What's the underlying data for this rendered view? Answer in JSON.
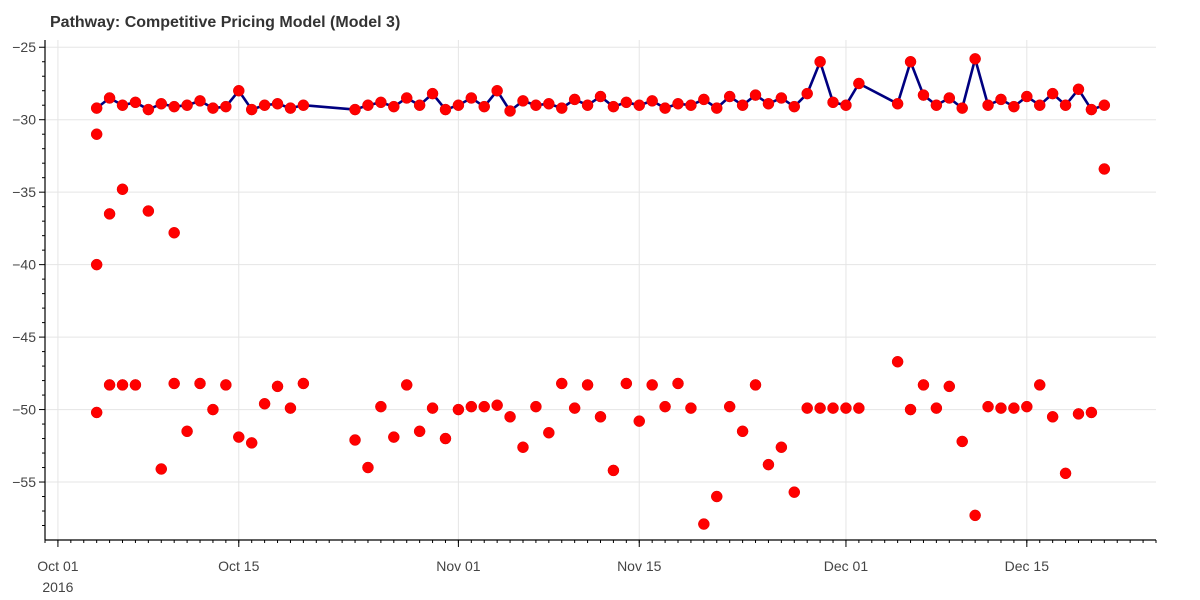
{
  "chart_data": {
    "type": "line",
    "title": "Pathway: Competitive Pricing Model (Model 3)",
    "xlabel": "",
    "ylabel": "",
    "x_axis": {
      "type": "datetime",
      "range": [
        "2016-09-30",
        "2016-12-25"
      ],
      "ticks": [
        {
          "date": "2016-10-01",
          "label": "Oct 01",
          "sublabel": "2016"
        },
        {
          "date": "2016-10-15",
          "label": "Oct 15"
        },
        {
          "date": "2016-11-01",
          "label": "Nov 01"
        },
        {
          "date": "2016-11-15",
          "label": "Nov 15"
        },
        {
          "date": "2016-12-01",
          "label": "Dec 01"
        },
        {
          "date": "2016-12-15",
          "label": "Dec 15"
        }
      ]
    },
    "y_axis": {
      "range": [
        -59,
        -24.5
      ],
      "ticks": [
        -25,
        -30,
        -35,
        -40,
        -45,
        -50,
        -55
      ],
      "tick_labels": [
        "−25",
        "−30",
        "−35",
        "−40",
        "−45",
        "−50",
        "−55"
      ]
    },
    "grid": true,
    "colors": {
      "line": "#000080",
      "marker": "#ff0000",
      "grid": "#e5e5e5",
      "title": "#333333"
    },
    "series": [
      {
        "style": "line+markers",
        "x": [
          "2016-10-04",
          "2016-10-05",
          "2016-10-06",
          "2016-10-07",
          "2016-10-08",
          "2016-10-09",
          "2016-10-10",
          "2016-10-11",
          "2016-10-12",
          "2016-10-13",
          "2016-10-14",
          "2016-10-15",
          "2016-10-16",
          "2016-10-17",
          "2016-10-18",
          "2016-10-19",
          "2016-10-20",
          "2016-10-24",
          "2016-10-25",
          "2016-10-26",
          "2016-10-27",
          "2016-10-28",
          "2016-10-29",
          "2016-10-30",
          "2016-10-31",
          "2016-11-01",
          "2016-11-02",
          "2016-11-03",
          "2016-11-04",
          "2016-11-05",
          "2016-11-06",
          "2016-11-07",
          "2016-11-08",
          "2016-11-09",
          "2016-11-10",
          "2016-11-11",
          "2016-11-12",
          "2016-11-13",
          "2016-11-14",
          "2016-11-15",
          "2016-11-16",
          "2016-11-17",
          "2016-11-18",
          "2016-11-19",
          "2016-11-20",
          "2016-11-21",
          "2016-11-22",
          "2016-11-23",
          "2016-11-24",
          "2016-11-25",
          "2016-11-26",
          "2016-11-27",
          "2016-11-28",
          "2016-11-29",
          "2016-11-30",
          "2016-12-01",
          "2016-12-02",
          "2016-12-05",
          "2016-12-06",
          "2016-12-07",
          "2016-12-08",
          "2016-12-09",
          "2016-12-10",
          "2016-12-11",
          "2016-12-12",
          "2016-12-13",
          "2016-12-14",
          "2016-12-15",
          "2016-12-16",
          "2016-12-17",
          "2016-12-18",
          "2016-12-19",
          "2016-12-20",
          "2016-12-21"
        ],
        "y": [
          -29.2,
          -28.5,
          -29.0,
          -28.8,
          -29.3,
          -28.9,
          -29.1,
          -29.0,
          -28.7,
          -29.2,
          -29.1,
          -28.0,
          -29.3,
          -29.0,
          -28.9,
          -29.2,
          -29.0,
          -29.3,
          -29.0,
          -28.8,
          -29.1,
          -28.5,
          -29.0,
          -28.2,
          -29.3,
          -29.0,
          -28.5,
          -29.1,
          -28.0,
          -29.4,
          -28.7,
          -29.0,
          -28.9,
          -29.2,
          -28.6,
          -29.0,
          -28.4,
          -29.1,
          -28.8,
          -29.0,
          -28.7,
          -29.2,
          -28.9,
          -29.0,
          -28.6,
          -29.2,
          -28.4,
          -29.0,
          -28.3,
          -28.9,
          -28.5,
          -29.1,
          -28.2,
          -26.0,
          -28.8,
          -29.0,
          -27.5,
          -28.9,
          -26.0,
          -28.3,
          -29.0,
          -28.5,
          -29.2,
          -25.8,
          -29.0,
          -28.6,
          -29.1,
          -28.4,
          -29.0,
          -28.2,
          -29.0,
          -27.9,
          -29.3,
          -29.0
        ]
      },
      {
        "style": "markers",
        "x": [
          "2016-10-04",
          "2016-10-04",
          "2016-10-04",
          "2016-10-05",
          "2016-10-05",
          "2016-10-06",
          "2016-10-06",
          "2016-10-07",
          "2016-10-08",
          "2016-10-09",
          "2016-10-10",
          "2016-10-10",
          "2016-10-11",
          "2016-10-12",
          "2016-10-13",
          "2016-10-14",
          "2016-10-15",
          "2016-10-16",
          "2016-10-17",
          "2016-10-18",
          "2016-10-19",
          "2016-10-20",
          "2016-10-24",
          "2016-10-25",
          "2016-10-26",
          "2016-10-27",
          "2016-10-28",
          "2016-10-29",
          "2016-10-30",
          "2016-10-31",
          "2016-11-01",
          "2016-11-02",
          "2016-11-03",
          "2016-11-04",
          "2016-11-05",
          "2016-11-06",
          "2016-11-07",
          "2016-11-08",
          "2016-11-09",
          "2016-11-10",
          "2016-11-11",
          "2016-11-12",
          "2016-11-13",
          "2016-11-14",
          "2016-11-15",
          "2016-11-16",
          "2016-11-17",
          "2016-11-18",
          "2016-11-19",
          "2016-11-20",
          "2016-11-21",
          "2016-11-22",
          "2016-11-23",
          "2016-11-24",
          "2016-11-25",
          "2016-11-26",
          "2016-11-27",
          "2016-11-28",
          "2016-11-29",
          "2016-11-30",
          "2016-12-01",
          "2016-12-02",
          "2016-12-05",
          "2016-12-06",
          "2016-12-07",
          "2016-12-08",
          "2016-12-09",
          "2016-12-10",
          "2016-12-11",
          "2016-12-12",
          "2016-12-13",
          "2016-12-14",
          "2016-12-15",
          "2016-12-16",
          "2016-12-17",
          "2016-12-18",
          "2016-12-19",
          "2016-12-20",
          "2016-12-21"
        ],
        "y": [
          -50.2,
          -40.0,
          -31.0,
          -48.3,
          -36.5,
          -48.3,
          -34.8,
          -48.3,
          -36.3,
          -54.1,
          -48.2,
          -37.8,
          -51.5,
          -48.2,
          -50.0,
          -48.3,
          -51.9,
          -52.3,
          -49.6,
          -48.4,
          -49.9,
          -48.2,
          -52.1,
          -54.0,
          -49.8,
          -51.9,
          -48.3,
          -51.5,
          -49.9,
          -52.0,
          -50.0,
          -49.8,
          -49.8,
          -49.7,
          -50.5,
          -52.6,
          -49.8,
          -51.6,
          -48.2,
          -49.9,
          -48.3,
          -50.5,
          -54.2,
          -48.2,
          -50.8,
          -48.3,
          -49.8,
          -48.2,
          -49.9,
          -57.9,
          -56.0,
          -49.8,
          -51.5,
          -48.3,
          -53.8,
          -52.6,
          -55.7,
          -49.9,
          -49.9,
          -49.9,
          -49.9,
          -49.9,
          -46.7,
          -50.0,
          -48.3,
          -49.9,
          -48.4,
          -52.2,
          -57.3,
          -49.8,
          -49.9,
          -49.9,
          -49.8,
          -48.3,
          -50.5,
          -54.4,
          -50.3,
          -50.2,
          -33.4
        ]
      }
    ]
  }
}
